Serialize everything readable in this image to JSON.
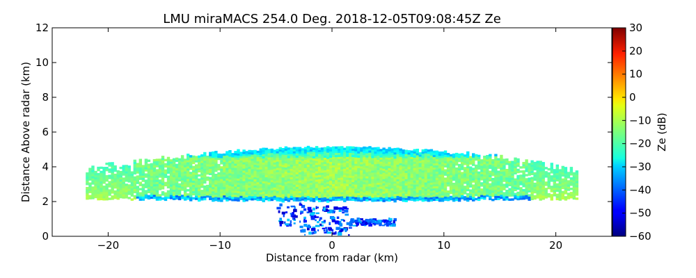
{
  "chart_data": {
    "type": "heatmap",
    "title": "LMU miraMACS 254.0 Deg. 2018-12-05T09:08:45Z  Ze",
    "xlabel": "Distance from radar (km)",
    "ylabel": "Distance Above radar  (km)",
    "xlim": [
      -25,
      25
    ],
    "ylim": [
      0,
      12
    ],
    "x_ticks": [
      -20,
      -10,
      0,
      10,
      20
    ],
    "x_tick_labels": [
      "−20",
      "−10",
      "0",
      "10",
      "20"
    ],
    "y_ticks": [
      0,
      2,
      4,
      6,
      8,
      10,
      12
    ],
    "y_tick_labels": [
      "0",
      "2",
      "4",
      "6",
      "8",
      "10",
      "12"
    ],
    "colorbar": {
      "label": "Ze (dB)",
      "range": [
        -60,
        30
      ],
      "colormap": "jet",
      "ticks": [
        -60,
        -50,
        -40,
        -30,
        -20,
        -10,
        0,
        10,
        20,
        30
      ],
      "tick_labels": [
        "−60",
        "−50",
        "−40",
        "−30",
        "−20",
        "−10",
        "0",
        "10",
        "20",
        "30"
      ]
    },
    "grid": false,
    "echo_regions": [
      {
        "name": "main_layer",
        "x_range": [
          -22,
          22
        ],
        "base_km": 2.0,
        "top_km_center": 5.1,
        "top_km_edges": 4.0,
        "core_height_km": 2.5,
        "core_ze_db": -8,
        "upper_ze_db": -25,
        "edge_ze_db": -15,
        "base_edge_ze_db": -40
      },
      {
        "name": "near_ground_clutter",
        "x_range": [
          -5,
          5.5
        ],
        "y_range": [
          0,
          1.8
        ],
        "ze_db_range": [
          -55,
          -30
        ]
      }
    ]
  }
}
